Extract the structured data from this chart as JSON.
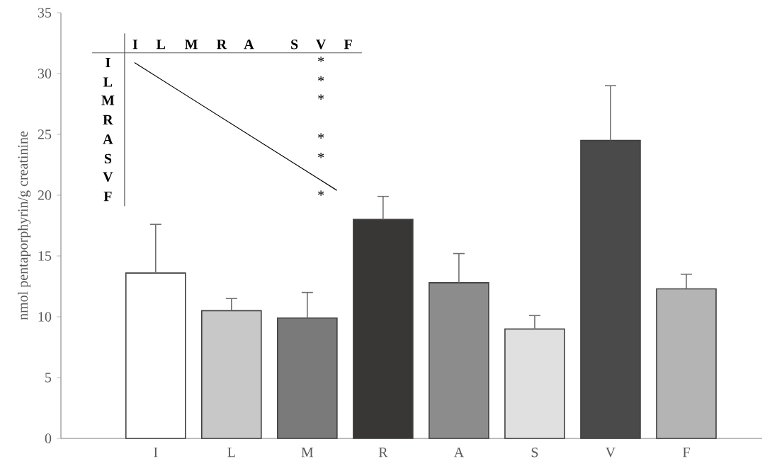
{
  "chart_data": {
    "type": "bar",
    "ylabel": "nmol pentaporphyrin/g creatinine",
    "categories": [
      "I",
      "L",
      "M",
      "R",
      "A",
      "S",
      "V",
      "F"
    ],
    "values": [
      13.6,
      10.5,
      9.9,
      18.0,
      12.8,
      9.0,
      24.5,
      12.3
    ],
    "errors": [
      4.0,
      1.0,
      2.1,
      1.9,
      2.4,
      1.1,
      4.5,
      1.2
    ],
    "colors": [
      "#ffffff",
      "#c8c8c8",
      "#7a7a7a",
      "#383735",
      "#8c8c8c",
      "#e0e0e0",
      "#4a4a4a",
      "#b4b4b4"
    ],
    "ylim": [
      0,
      35
    ],
    "yticks": [
      0,
      5,
      10,
      15,
      20,
      25,
      30,
      35
    ],
    "annotations": [
      "I",
      "L",
      "M",
      "R",
      "A",
      "S",
      "V",
      "F",
      "I",
      "L",
      "M",
      "R",
      "A",
      "S",
      "V",
      "F",
      "*",
      "*",
      "*",
      "*",
      "*",
      "*"
    ]
  }
}
